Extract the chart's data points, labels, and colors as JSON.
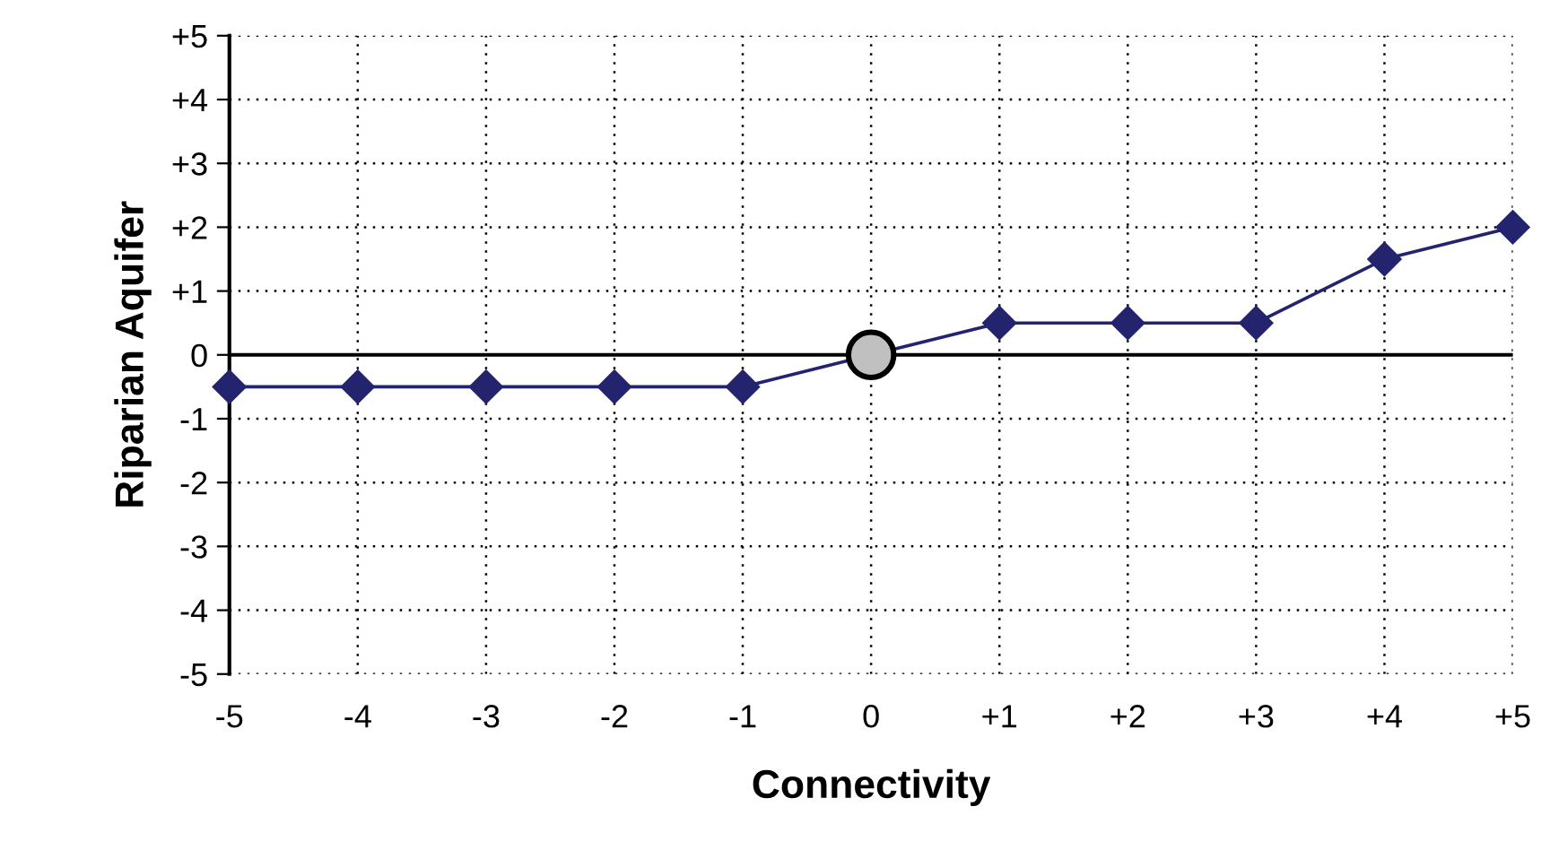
{
  "chart_data": {
    "type": "line",
    "xlabel": "Connectivity",
    "ylabel": "Riparian Aquifer",
    "x": [
      -5,
      -4,
      -3,
      -2,
      -1,
      0,
      1,
      2,
      3,
      4,
      5
    ],
    "series": [
      {
        "color": "#23236e",
        "marker": "diamond",
        "values": [
          -0.5,
          -0.5,
          -0.5,
          -0.5,
          -0.5,
          0,
          0.5,
          0.5,
          0.5,
          1.5,
          2
        ]
      },
      {
        "type": "scatter",
        "color": "#c0c0c0",
        "marker": "circle",
        "x": [
          0
        ],
        "values": [
          0
        ]
      }
    ],
    "xlim": [
      -5,
      5
    ],
    "ylim": [
      -5,
      5
    ],
    "xticks": [
      -5,
      -4,
      -3,
      -2,
      -1,
      0,
      {
        "value": 1,
        "label": "+1"
      },
      {
        "value": 2,
        "label": "+2"
      },
      {
        "value": 3,
        "label": "+3"
      },
      {
        "value": 4,
        "label": "+4"
      },
      {
        "value": 5,
        "label": "+5"
      }
    ],
    "yticks": [
      -5,
      -4,
      -3,
      -2,
      -1,
      0,
      {
        "value": 1,
        "label": "+1"
      },
      {
        "value": 2,
        "label": "+2"
      },
      {
        "value": 3,
        "label": "+3"
      },
      {
        "value": 4,
        "label": "+4"
      },
      {
        "value": 5,
        "label": "+5"
      }
    ],
    "ref_lines": [
      {
        "axis": "y",
        "value": 0,
        "color": "#000000",
        "line_style": "solid"
      }
    ],
    "grid": true,
    "line_style": "solid"
  }
}
